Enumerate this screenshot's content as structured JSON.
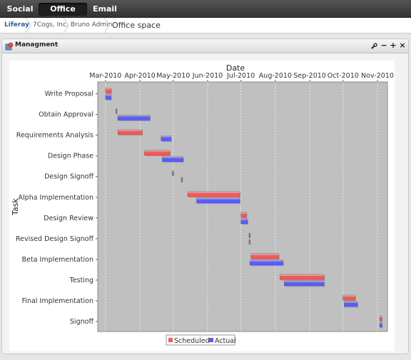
{
  "nav": {
    "tabs": [
      {
        "label": "Social"
      },
      {
        "label": "Office space",
        "active": true
      },
      {
        "label": "Email"
      }
    ]
  },
  "breadcrumb": {
    "items": [
      "Liferay",
      "7Cogs, Inc.",
      "Bruno Admin",
      "Office space"
    ]
  },
  "portlet": {
    "title": "Managment",
    "controls": [
      "wrench-icon",
      "minimize-icon",
      "maximize-icon",
      "close-icon"
    ]
  },
  "colors": {
    "scheduled": "#f25a5a",
    "actual": "#5c5cf5",
    "plot_bg": "#c0c0c0"
  },
  "chart_data": {
    "type": "gantt",
    "xlabel": "Date",
    "ylabel": "Task",
    "xlim": [
      "2010-02-22",
      "2010-11-10"
    ],
    "x_ticks": [
      "Mar-2010",
      "Apr-2010",
      "May-2010",
      "Jun-2010",
      "Jul-2010",
      "Aug-2010",
      "Sep-2010",
      "Oct-2010",
      "Nov-2010"
    ],
    "legend": {
      "position": "bottom",
      "entries": [
        "Scheduled",
        "Actual"
      ]
    },
    "tasks": [
      {
        "name": "Write Proposal",
        "scheduled": [
          "2010-03-01",
          "2010-03-06"
        ],
        "actual": [
          "2010-03-01",
          "2010-03-06"
        ]
      },
      {
        "name": "Obtain Approval",
        "scheduled": [
          "2010-03-10",
          "2010-03-11"
        ],
        "actual": [
          "2010-03-12",
          "2010-04-10"
        ]
      },
      {
        "name": "Requirements Analysis",
        "scheduled": [
          "2010-03-12",
          "2010-04-03"
        ],
        "actual": [
          "2010-04-20",
          "2010-04-29"
        ]
      },
      {
        "name": "Design Phase",
        "scheduled": [
          "2010-04-05",
          "2010-04-28"
        ],
        "actual": [
          "2010-04-21",
          "2010-05-10"
        ]
      },
      {
        "name": "Design Signoff",
        "scheduled": [
          "2010-04-30",
          "2010-05-01"
        ],
        "actual": [
          "2010-05-08",
          "2010-05-09"
        ]
      },
      {
        "name": "Alpha Implementation",
        "scheduled": [
          "2010-05-14",
          "2010-06-30"
        ],
        "actual": [
          "2010-05-22",
          "2010-06-30"
        ]
      },
      {
        "name": "Design Review",
        "scheduled": [
          "2010-07-01",
          "2010-07-06"
        ],
        "actual": [
          "2010-07-01",
          "2010-07-07"
        ]
      },
      {
        "name": "Revised Design Signoff",
        "scheduled": [
          "2010-07-08",
          "2010-07-09"
        ],
        "actual": [
          "2010-07-08",
          "2010-07-09"
        ]
      },
      {
        "name": "Beta Implementation",
        "scheduled": [
          "2010-07-10",
          "2010-08-04"
        ],
        "actual": [
          "2010-07-09",
          "2010-08-08"
        ]
      },
      {
        "name": "Testing",
        "scheduled": [
          "2010-08-05",
          "2010-09-14"
        ],
        "actual": [
          "2010-08-09",
          "2010-09-14"
        ]
      },
      {
        "name": "Final Implementation",
        "scheduled": [
          "2010-10-01",
          "2010-10-12"
        ],
        "actual": [
          "2010-10-02",
          "2010-10-14"
        ]
      },
      {
        "name": "Signoff",
        "scheduled": [
          "2010-11-03",
          "2010-11-05"
        ],
        "actual": [
          "2010-11-03",
          "2010-11-05"
        ]
      }
    ]
  }
}
